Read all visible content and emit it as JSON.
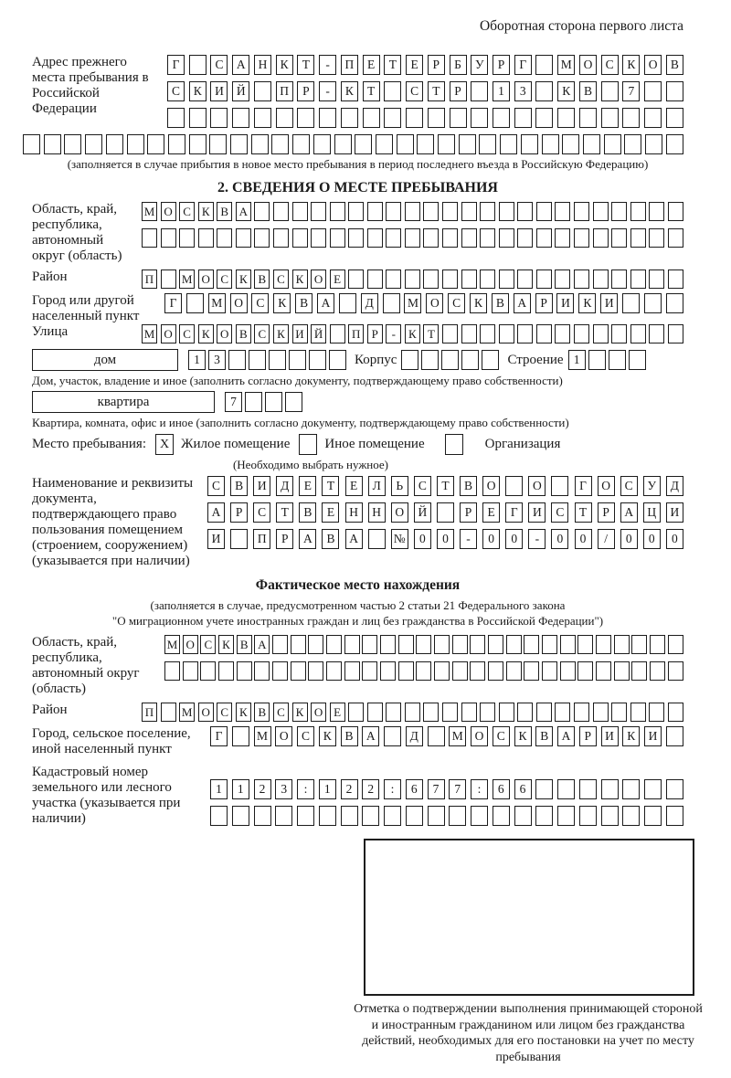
{
  "colors": {
    "ink": "#1b1b1b",
    "page_bg": "#ffffff"
  },
  "page": {
    "header_note": "Оборотная сторона первого листа"
  },
  "address_prev": {
    "label": "Адрес прежнего места пребывания в Российской Федерации",
    "rows": [
      {
        "chars": "Г САНКТ-ПЕТЕРБУРГ МОСКОВ",
        "len": 24
      },
      {
        "chars": "СКИЙ ПР-КТ СТР 13 КВ 7",
        "len": 24
      },
      {
        "chars": "",
        "len": 24
      }
    ],
    "full_row": {
      "chars": "",
      "len": 32
    },
    "caption": "(заполняется в случае прибытия в новое место пребывания в период последнего въезда в Российскую Федерацию)"
  },
  "section2": {
    "title": "2. СВЕДЕНИЯ О МЕСТЕ ПРЕБЫВАНИЯ",
    "oblast": {
      "label": "Область, край, республика, автономный округ (область)",
      "row1": {
        "chars": "МОСКВА",
        "len": 29
      },
      "row2": {
        "chars": "",
        "len": 29
      }
    },
    "rayon": {
      "label": "Район",
      "row": {
        "chars": "П МОСКВСКОЕ",
        "len": 29
      }
    },
    "gorod": {
      "label": "Город или другой населенный пункт",
      "row": {
        "chars": "Г МОСКВА Д МОСКВАРИКИ",
        "len": 24
      }
    },
    "ulitsa": {
      "label": "Улица",
      "row": {
        "chars": "МОСКОВСКИЙ ПР-КТ",
        "len": 29
      }
    },
    "dom": {
      "box_label": "дом",
      "row": {
        "chars": "13",
        "len": 8
      },
      "korpus_label": "Корпус",
      "korpus_row": {
        "chars": "",
        "len": 5
      },
      "stroenie_label": "Строение",
      "stroenie_row": {
        "chars": "1",
        "len": 4
      },
      "caption": "Дом, участок, владение и иное (заполнить согласно документу, подтверждающему право собственности)"
    },
    "kvartira": {
      "box_label": "квартира",
      "row": {
        "chars": "7",
        "len": 4
      },
      "caption": "Квартира, комната, офис и иное (заполнить согласно документу, подтверждающему право собственности)"
    },
    "mesto": {
      "label": "Место пребывания:",
      "options": [
        {
          "label": "Жилое помещение",
          "checked": "X"
        },
        {
          "label": "Иное помещение",
          "checked": ""
        },
        {
          "label": "Организация",
          "checked": ""
        }
      ],
      "caption": "(Необходимо выбрать нужное)"
    },
    "doc": {
      "label": "Наименование и реквизиты документа, подтверждающего право пользования помещением (строением, сооружением) (указывается при наличии)",
      "rows": [
        {
          "chars": "СВИДЕТЕЛЬСТВО О ГОСУД",
          "len": 21
        },
        {
          "chars": "АРСТВЕННОЙ РЕГИСТРАЦИ",
          "len": 21
        },
        {
          "chars": "И ПРАВА №00-00-00/000",
          "len": 21
        }
      ]
    }
  },
  "actual_location": {
    "title": "Фактическое место нахождения",
    "caption_line1": "(заполняется в случае, предусмотренном частью 2 статьи 21 Федерального закона",
    "caption_line2": "\"О миграционном учете иностранных граждан и лиц без гражданства в Российской Федерации\")",
    "oblast": {
      "label": "Область, край, республика, автономный округ (область)",
      "row1": {
        "chars": "МОСКВА",
        "len": 29
      },
      "row2": {
        "chars": "",
        "len": 29
      }
    },
    "rayon": {
      "label": "Район",
      "row": {
        "chars": "П МОСКВСКОЕ",
        "len": 29
      }
    },
    "gorod": {
      "label": "Город, сельское поселение, иной населенный пункт",
      "row": {
        "chars": "Г МОСКВА Д МОСКВАРИКИ",
        "len": 22
      }
    },
    "kadastr": {
      "label": "Кадастровый номер земельного или лесного участка (указывается при наличии)",
      "row1": {
        "chars": "1123:122:677:66",
        "len": 22
      },
      "row2": {
        "chars": "",
        "len": 22
      }
    },
    "stamp_caption": "Отметка о подтверждении выполнения принимающей стороной и иностранным гражданином или лицом без гражданства действий, необходимых для его постановки на учет по месту пребывания"
  }
}
